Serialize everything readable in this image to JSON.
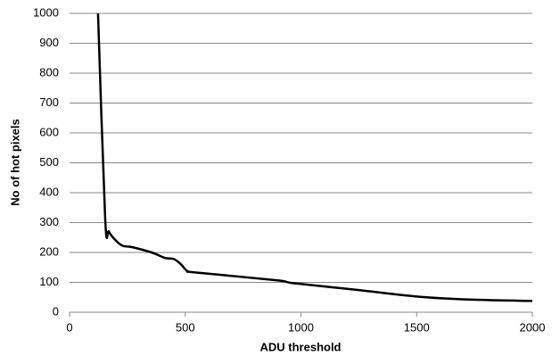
{
  "chart_data": {
    "type": "line",
    "xlabel": "ADU threshold",
    "ylabel": "No of hot pixels",
    "series": [
      {
        "name": "hot pixels",
        "color": "#000000",
        "x": [
          123,
          154,
          170,
          200,
          231,
          270,
          355,
          412,
          451,
          482,
          509,
          547,
          894,
          971,
          1241,
          1511,
          1742,
          2000
        ],
        "values": [
          1000,
          313,
          270,
          240,
          222,
          218,
          200,
          182,
          178,
          160,
          138,
          133,
          107,
          97,
          75,
          52,
          42,
          38
        ]
      }
    ],
    "xlim": [
      0,
      2000
    ],
    "xticks": [
      0,
      500,
      1000,
      1500,
      2000
    ],
    "ylim": [
      0,
      1000
    ],
    "yticks": [
      0,
      100,
      200,
      300,
      400,
      500,
      600,
      700,
      800,
      900,
      1000
    ],
    "grid": true
  }
}
